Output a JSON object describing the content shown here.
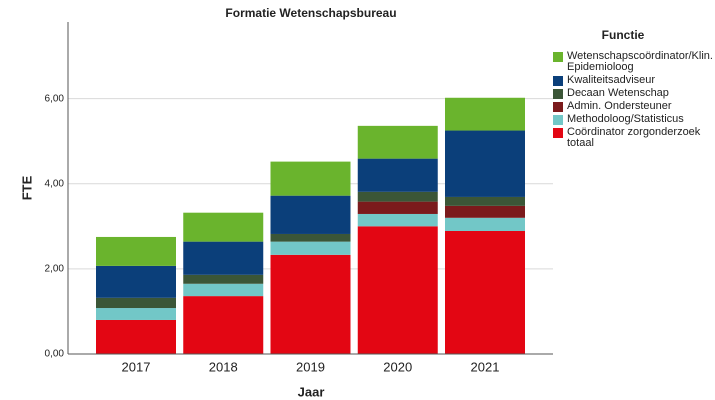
{
  "chart_data": {
    "type": "stacked_bar",
    "title": "Formatie Wetenschapsbureau",
    "x_label": "Jaar",
    "y_label": "FTE",
    "legend_title": "Functie",
    "categories": [
      "2017",
      "2018",
      "2019",
      "2020",
      "2021"
    ],
    "series": [
      {
        "name": "Coördinator zorgonderzoek totaal",
        "color": "#e30613",
        "values": [
          0.8,
          1.36,
          2.33,
          3.0,
          2.89
        ]
      },
      {
        "name": "Methodoloog/Statisticus",
        "color": "#72c7c7",
        "values": [
          0.28,
          0.29,
          0.31,
          0.29,
          0.31
        ]
      },
      {
        "name": "Admin. Ondersteuner",
        "color": "#7b1a1c",
        "values": [
          0,
          0,
          0,
          0.29,
          0.28
        ]
      },
      {
        "name": "Decaan Wetenschap",
        "color": "#3b5637",
        "values": [
          0.24,
          0.21,
          0.18,
          0.23,
          0.21
        ]
      },
      {
        "name": "Kwaliteitsadviseur",
        "color": "#0b3f7a",
        "values": [
          0.75,
          0.78,
          0.9,
          0.78,
          1.56
        ]
      },
      {
        "name": "Wetenschapscoördinator/Klin. Epidemioloog",
        "color": "#6ab42d",
        "values": [
          0.68,
          0.68,
          0.8,
          0.77,
          0.77
        ]
      }
    ],
    "ylim": [
      0,
      7.8
    ],
    "yticks": [
      {
        "value": 0,
        "label": "0,00"
      },
      {
        "value": 2,
        "label": "2,00"
      },
      {
        "value": 4,
        "label": "4,00"
      },
      {
        "value": 6,
        "label": "6,00"
      }
    ],
    "grid": true,
    "legend": "right"
  }
}
